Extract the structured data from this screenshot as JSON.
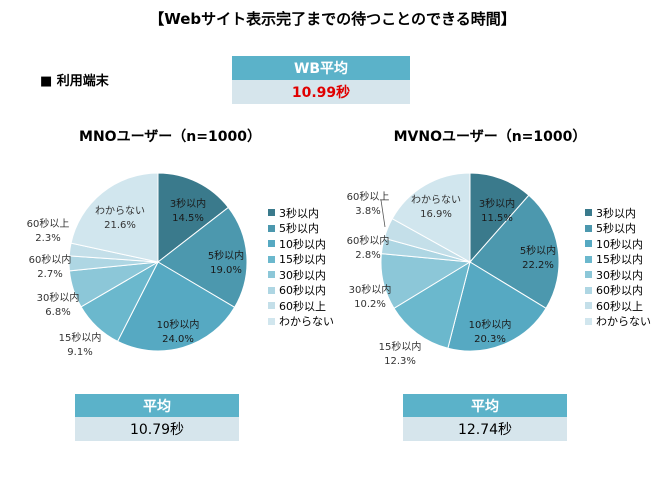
{
  "title": "【Webサイト表示完了までの待つことのできる時間】",
  "section_label": "■ 利用端末",
  "wb_average": {
    "label": "WB平均",
    "value": "10.99秒"
  },
  "colors": [
    "#3A7A8C",
    "#4C98AE",
    "#56A9C2",
    "#6BB8CD",
    "#8CC7D8",
    "#AED6E3",
    "#C4DFE9",
    "#D1E6EE"
  ],
  "chart_data": [
    {
      "type": "pie",
      "title": "MNOユーザー（n=1000）",
      "categories": [
        "3秒以内",
        "5秒以内",
        "10秒以内",
        "15秒以内",
        "30秒以内",
        "60秒以内",
        "60秒以上",
        "わからない"
      ],
      "values": [
        14.5,
        19.0,
        24.0,
        9.1,
        6.8,
        2.7,
        2.3,
        21.6
      ],
      "labels": [
        "14.5%",
        "19.0%",
        "24.0%",
        "9.1%",
        "6.8%",
        "2.7%",
        "2.3%",
        "21.6%"
      ],
      "legend": "right",
      "average": {
        "label": "平均",
        "value": "10.79秒"
      }
    },
    {
      "type": "pie",
      "title": "MVNOユーザー（n=1000）",
      "categories": [
        "3秒以内",
        "5秒以内",
        "10秒以内",
        "15秒以内",
        "30秒以内",
        "60秒以内",
        "60秒以上",
        "わからない"
      ],
      "values": [
        11.5,
        22.2,
        20.3,
        12.3,
        10.2,
        2.8,
        3.8,
        16.9
      ],
      "labels": [
        "11.5%",
        "22.2%",
        "20.3%",
        "12.3%",
        "10.2%",
        "2.8%",
        "3.8%",
        "16.9%"
      ],
      "legend": "right",
      "average": {
        "label": "平均",
        "value": "12.74秒"
      }
    }
  ]
}
